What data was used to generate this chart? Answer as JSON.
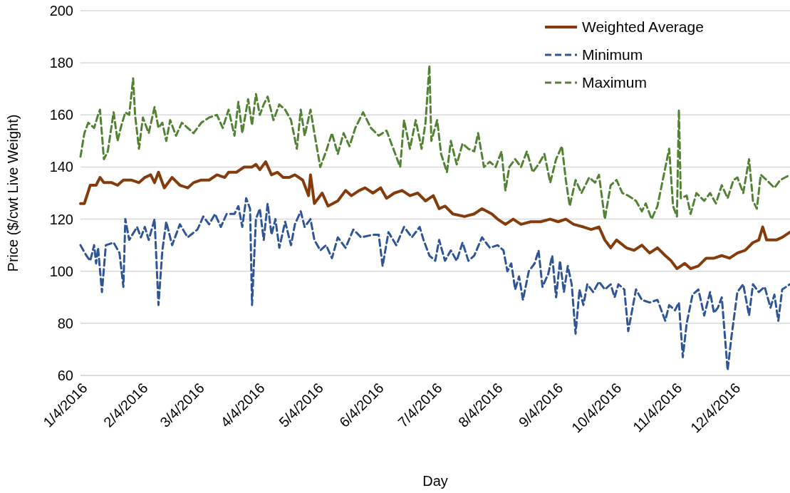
{
  "chart_data": {
    "type": "line",
    "xlabel": "Day",
    "ylabel": "Price ($/cwt Live Weight)",
    "ylim": [
      60,
      200
    ],
    "yticks": [
      60,
      80,
      100,
      120,
      140,
      160,
      180,
      200
    ],
    "xlim": [
      "2016-01-04",
      "2017-01-02"
    ],
    "xticks": [
      {
        "value": "2016-01-04",
        "label": "1/4/2016"
      },
      {
        "value": "2016-02-04",
        "label": "2/4/2016"
      },
      {
        "value": "2016-03-04",
        "label": "3/4/2016"
      },
      {
        "value": "2016-04-04",
        "label": "4/4/2016"
      },
      {
        "value": "2016-05-04",
        "label": "5/4/2016"
      },
      {
        "value": "2016-06-04",
        "label": "6/4/2016"
      },
      {
        "value": "2016-07-04",
        "label": "7/4/2016"
      },
      {
        "value": "2016-08-04",
        "label": "8/4/2016"
      },
      {
        "value": "2016-09-04",
        "label": "9/4/2016"
      },
      {
        "value": "2016-10-04",
        "label": "10/4/2016"
      },
      {
        "value": "2016-11-04",
        "label": "11/4/2016"
      },
      {
        "value": "2016-12-04",
        "label": "12/4/2016"
      }
    ],
    "grid": "y",
    "legend": "top right",
    "marker": "none",
    "series": [
      {
        "name": "Weighted Average",
        "color": "#843c0c",
        "line_style": "solid",
        "x": [
          "2016-01-04",
          "2016-01-06",
          "2016-01-09",
          "2016-01-12",
          "2016-01-14",
          "2016-01-16",
          "2016-01-20",
          "2016-01-23",
          "2016-01-26",
          "2016-01-30",
          "2016-02-03",
          "2016-02-06",
          "2016-02-09",
          "2016-02-11",
          "2016-02-13",
          "2016-02-16",
          "2016-02-20",
          "2016-02-24",
          "2016-02-28",
          "2016-03-02",
          "2016-03-06",
          "2016-03-10",
          "2016-03-14",
          "2016-03-18",
          "2016-03-20",
          "2016-03-24",
          "2016-03-28",
          "2016-04-01",
          "2016-04-03",
          "2016-04-05",
          "2016-04-08",
          "2016-04-11",
          "2016-04-14",
          "2016-04-17",
          "2016-04-20",
          "2016-04-23",
          "2016-04-27",
          "2016-04-30",
          "2016-05-01",
          "2016-05-03",
          "2016-05-07",
          "2016-05-10",
          "2016-05-15",
          "2016-05-19",
          "2016-05-22",
          "2016-05-26",
          "2016-05-29",
          "2016-06-02",
          "2016-06-06",
          "2016-06-09",
          "2016-06-13",
          "2016-06-17",
          "2016-06-21",
          "2016-06-25",
          "2016-06-29",
          "2016-07-03",
          "2016-07-06",
          "2016-07-09",
          "2016-07-13",
          "2016-07-19",
          "2016-07-24",
          "2016-07-28",
          "2016-08-02",
          "2016-08-05",
          "2016-08-09",
          "2016-08-13",
          "2016-08-17",
          "2016-08-22",
          "2016-08-27",
          "2016-09-01",
          "2016-09-05",
          "2016-09-09",
          "2016-09-13",
          "2016-09-18",
          "2016-09-22",
          "2016-09-26",
          "2016-09-29",
          "2016-10-02",
          "2016-10-05",
          "2016-10-10",
          "2016-10-14",
          "2016-10-18",
          "2016-10-22",
          "2016-10-26",
          "2016-10-30",
          "2016-11-02",
          "2016-11-05",
          "2016-11-09",
          "2016-11-12",
          "2016-11-16",
          "2016-11-20",
          "2016-11-24",
          "2016-11-28",
          "2016-12-02",
          "2016-12-06",
          "2016-12-10",
          "2016-12-14",
          "2016-12-17",
          "2016-12-19",
          "2016-12-21",
          "2016-12-26",
          "2016-12-29",
          "2017-01-02"
        ],
        "values": [
          126,
          126,
          133,
          133,
          136,
          134,
          134,
          133,
          135,
          135,
          134,
          136,
          137,
          134,
          138,
          132,
          136,
          133,
          132,
          134,
          135,
          135,
          137,
          136,
          138,
          138,
          140,
          140,
          141,
          139,
          142,
          137,
          138,
          136,
          136,
          137,
          135,
          129,
          137,
          126,
          130,
          125,
          127,
          131,
          129,
          131,
          132,
          130,
          132,
          128,
          130,
          131,
          129,
          130,
          127,
          129,
          124,
          125,
          122,
          121,
          122,
          124,
          122,
          120,
          118,
          120,
          118,
          119,
          119,
          120,
          119,
          120,
          118,
          117,
          116,
          117,
          112,
          109,
          112,
          109,
          108,
          110,
          107,
          109,
          106,
          104,
          101,
          103,
          101,
          102,
          105,
          105,
          106,
          105,
          107,
          108,
          111,
          112,
          117,
          112,
          112,
          113,
          115
        ]
      },
      {
        "name": "Minimum",
        "color": "#2f5597",
        "line_style": "dashed",
        "x": [
          "2016-01-04",
          "2016-01-07",
          "2016-01-09",
          "2016-01-11",
          "2016-01-12",
          "2016-01-13",
          "2016-01-15",
          "2016-01-17",
          "2016-01-21",
          "2016-01-24",
          "2016-01-26",
          "2016-01-27",
          "2016-01-29",
          "2016-02-02",
          "2016-02-04",
          "2016-02-06",
          "2016-02-08",
          "2016-02-11",
          "2016-02-13",
          "2016-02-15",
          "2016-02-17",
          "2016-02-20",
          "2016-02-24",
          "2016-02-28",
          "2016-03-04",
          "2016-03-07",
          "2016-03-10",
          "2016-03-13",
          "2016-03-16",
          "2016-03-19",
          "2016-03-23",
          "2016-03-25",
          "2016-03-27",
          "2016-03-29",
          "2016-03-31",
          "2016-04-01",
          "2016-04-03",
          "2016-04-05",
          "2016-04-07",
          "2016-04-09",
          "2016-04-11",
          "2016-04-13",
          "2016-04-15",
          "2016-04-18",
          "2016-04-21",
          "2016-04-23",
          "2016-04-26",
          "2016-04-28",
          "2016-05-01",
          "2016-05-03",
          "2016-05-06",
          "2016-05-09",
          "2016-05-12",
          "2016-05-15",
          "2016-05-19",
          "2016-05-23",
          "2016-05-27",
          "2016-06-02",
          "2016-06-05",
          "2016-06-07",
          "2016-06-10",
          "2016-06-14",
          "2016-06-18",
          "2016-06-22",
          "2016-06-26",
          "2016-06-28",
          "2016-07-01",
          "2016-07-04",
          "2016-07-06",
          "2016-07-09",
          "2016-07-12",
          "2016-07-15",
          "2016-07-18",
          "2016-07-21",
          "2016-07-24",
          "2016-07-28",
          "2016-08-01",
          "2016-08-05",
          "2016-08-08",
          "2016-08-10",
          "2016-08-12",
          "2016-08-14",
          "2016-08-16",
          "2016-08-18",
          "2016-08-21",
          "2016-08-24",
          "2016-08-26",
          "2016-08-28",
          "2016-08-31",
          "2016-09-02",
          "2016-09-04",
          "2016-09-06",
          "2016-09-08",
          "2016-09-10",
          "2016-09-12",
          "2016-09-14",
          "2016-09-16",
          "2016-09-18",
          "2016-09-20",
          "2016-09-23",
          "2016-09-26",
          "2016-09-29",
          "2016-10-02",
          "2016-10-04",
          "2016-10-06",
          "2016-10-09",
          "2016-10-11",
          "2016-10-13",
          "2016-10-15",
          "2016-10-18",
          "2016-10-22",
          "2016-10-26",
          "2016-10-30",
          "2016-11-01",
          "2016-11-04",
          "2016-11-06",
          "2016-11-08",
          "2016-11-10",
          "2016-11-13",
          "2016-11-16",
          "2016-11-19",
          "2016-11-22",
          "2016-11-24",
          "2016-11-26",
          "2016-11-28",
          "2016-12-01",
          "2016-12-03",
          "2016-12-06",
          "2016-12-09",
          "2016-12-12",
          "2016-12-14",
          "2016-12-17",
          "2016-12-20",
          "2016-12-23",
          "2016-12-25",
          "2016-12-27",
          "2016-12-29",
          "2017-01-02"
        ],
        "values": [
          110,
          106,
          104,
          110,
          103,
          109,
          92,
          110,
          111,
          107,
          94,
          120,
          112,
          117,
          113,
          117,
          112,
          120,
          87,
          108,
          119,
          110,
          118,
          113,
          116,
          121,
          118,
          122,
          117,
          122,
          122,
          125,
          117,
          128,
          124,
          87,
          120,
          124,
          112,
          126,
          114,
          120,
          109,
          119,
          110,
          118,
          123,
          117,
          120,
          112,
          108,
          110,
          105,
          113,
          109,
          116,
          113,
          114,
          114,
          102,
          115,
          110,
          117,
          113,
          117,
          112,
          106,
          104,
          112,
          104,
          108,
          104,
          111,
          104,
          106,
          113,
          109,
          110,
          108,
          100,
          103,
          93,
          98,
          89,
          100,
          103,
          108,
          94,
          99,
          106,
          90,
          104,
          92,
          102,
          95,
          76,
          93,
          87,
          95,
          92,
          96,
          93,
          95,
          90,
          95,
          93,
          77,
          85,
          93,
          89,
          88,
          89,
          81,
          87,
          85,
          88,
          67,
          80,
          91,
          93,
          83,
          92,
          84,
          86,
          90,
          62,
          75,
          92,
          95,
          83,
          95,
          92,
          94,
          86,
          91,
          81,
          93,
          95
        ]
      },
      {
        "name": "Maximum",
        "color": "#548235",
        "line_style": "dashed",
        "x": [
          "2016-01-04",
          "2016-01-06",
          "2016-01-08",
          "2016-01-11",
          "2016-01-13",
          "2016-01-14",
          "2016-01-16",
          "2016-01-18",
          "2016-01-21",
          "2016-01-23",
          "2016-01-25",
          "2016-01-27",
          "2016-01-29",
          "2016-01-31",
          "2016-02-01",
          "2016-02-03",
          "2016-02-05",
          "2016-02-08",
          "2016-02-11",
          "2016-02-13",
          "2016-02-15",
          "2016-02-17",
          "2016-02-19",
          "2016-02-22",
          "2016-02-25",
          "2016-02-28",
          "2016-03-02",
          "2016-03-06",
          "2016-03-10",
          "2016-03-14",
          "2016-03-17",
          "2016-03-20",
          "2016-03-23",
          "2016-03-25",
          "2016-03-27",
          "2016-03-30",
          "2016-04-01",
          "2016-04-03",
          "2016-04-05",
          "2016-04-07",
          "2016-04-09",
          "2016-04-12",
          "2016-04-15",
          "2016-04-18",
          "2016-04-21",
          "2016-04-24",
          "2016-04-26",
          "2016-04-28",
          "2016-05-01",
          "2016-05-03",
          "2016-05-06",
          "2016-05-09",
          "2016-05-12",
          "2016-05-15",
          "2016-05-18",
          "2016-05-21",
          "2016-05-24",
          "2016-05-28",
          "2016-06-01",
          "2016-06-05",
          "2016-06-09",
          "2016-06-13",
          "2016-06-16",
          "2016-06-18",
          "2016-06-21",
          "2016-06-24",
          "2016-06-27",
          "2016-06-29",
          "2016-07-01",
          "2016-07-02",
          "2016-07-05",
          "2016-07-07",
          "2016-07-10",
          "2016-07-12",
          "2016-07-15",
          "2016-07-18",
          "2016-07-21",
          "2016-07-24",
          "2016-07-26",
          "2016-07-29",
          "2016-08-01",
          "2016-08-04",
          "2016-08-07",
          "2016-08-09",
          "2016-08-11",
          "2016-08-14",
          "2016-08-17",
          "2016-08-20",
          "2016-08-23",
          "2016-08-26",
          "2016-08-29",
          "2016-09-01",
          "2016-09-04",
          "2016-09-07",
          "2016-09-09",
          "2016-09-11",
          "2016-09-14",
          "2016-09-17",
          "2016-09-21",
          "2016-09-24",
          "2016-09-26",
          "2016-09-29",
          "2016-10-02",
          "2016-10-05",
          "2016-10-08",
          "2016-10-11",
          "2016-10-15",
          "2016-10-18",
          "2016-10-20",
          "2016-10-23",
          "2016-10-26",
          "2016-11-01",
          "2016-11-03",
          "2016-11-05",
          "2016-11-06",
          "2016-11-07",
          "2016-11-10",
          "2016-11-12",
          "2016-11-15",
          "2016-11-19",
          "2016-11-22",
          "2016-11-25",
          "2016-11-28",
          "2016-12-01",
          "2016-12-04",
          "2016-12-06",
          "2016-12-09",
          "2016-12-12",
          "2016-12-14",
          "2016-12-16",
          "2016-12-18",
          "2016-12-21",
          "2016-12-25",
          "2016-12-28",
          "2017-01-02"
        ],
        "values": [
          144,
          153,
          157,
          155,
          160,
          162,
          143,
          146,
          161,
          150,
          156,
          161,
          160,
          174,
          160,
          147,
          159,
          153,
          163,
          155,
          157,
          150,
          158,
          152,
          157,
          155,
          153,
          157,
          159,
          160,
          155,
          162,
          152,
          165,
          153,
          166,
          156,
          168,
          160,
          164,
          167,
          158,
          164,
          162,
          158,
          147,
          162,
          152,
          162,
          153,
          140,
          146,
          153,
          145,
          153,
          148,
          155,
          161,
          155,
          152,
          154,
          146,
          140,
          158,
          147,
          158,
          147,
          157,
          179,
          150,
          158,
          145,
          138,
          150,
          141,
          149,
          147,
          146,
          153,
          140,
          142,
          140,
          146,
          131,
          140,
          143,
          140,
          146,
          138,
          141,
          145,
          134,
          143,
          148,
          135,
          125,
          135,
          130,
          136,
          134,
          137,
          120,
          133,
          135,
          130,
          129,
          127,
          123,
          126,
          120,
          125,
          147,
          125,
          121,
          162,
          128,
          129,
          122,
          130,
          127,
          130,
          126,
          133,
          128,
          135,
          136,
          130,
          143,
          127,
          124,
          137,
          135,
          132,
          135,
          137
        ]
      }
    ]
  }
}
